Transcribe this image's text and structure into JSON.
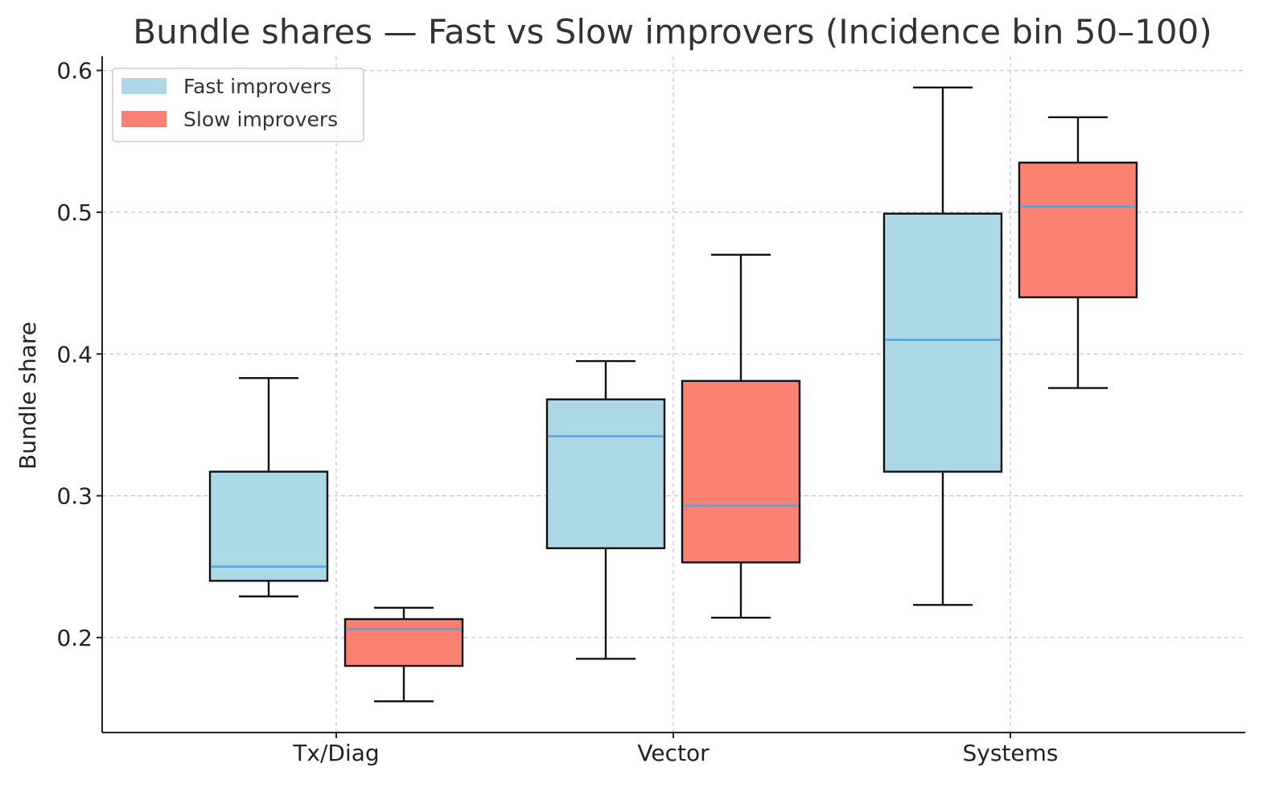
{
  "chart_data": {
    "type": "boxplot",
    "title": "Bundle shares — Fast vs Slow improvers (Incidence bin 50–100)",
    "xlabel": "",
    "ylabel": "Bundle share",
    "ylim": [
      0.133,
      0.61
    ],
    "yticks": [
      0.2,
      0.3,
      0.4,
      0.5,
      0.6
    ],
    "ytick_labels": [
      "0.2",
      "0.3",
      "0.4",
      "0.5",
      "0.6"
    ],
    "categories": [
      "Tx/Diag",
      "Vector",
      "Systems"
    ],
    "grid": true,
    "legend_position": "top-left",
    "series": [
      {
        "name": "Fast improvers",
        "color": "#add8e6",
        "boxes": [
          {
            "whislo": 0.229,
            "q1": 0.24,
            "med": 0.25,
            "q3": 0.317,
            "whishi": 0.383
          },
          {
            "whislo": 0.185,
            "q1": 0.263,
            "med": 0.342,
            "q3": 0.368,
            "whishi": 0.395
          },
          {
            "whislo": 0.223,
            "q1": 0.317,
            "med": 0.41,
            "q3": 0.499,
            "whishi": 0.588
          }
        ]
      },
      {
        "name": "Slow improvers",
        "color": "#fa8072",
        "boxes": [
          {
            "whislo": 0.155,
            "q1": 0.18,
            "med": 0.206,
            "q3": 0.213,
            "whishi": 0.221
          },
          {
            "whislo": 0.214,
            "q1": 0.253,
            "med": 0.293,
            "q3": 0.381,
            "whishi": 0.47
          },
          {
            "whislo": 0.376,
            "q1": 0.44,
            "med": 0.504,
            "q3": 0.535,
            "whishi": 0.567
          }
        ]
      }
    ],
    "median_color": "#4aa8e8"
  }
}
